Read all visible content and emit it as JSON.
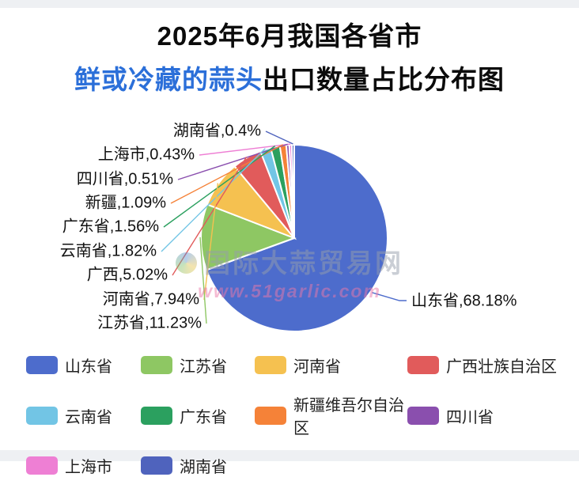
{
  "title": {
    "line1": "2025年6月我国各省市",
    "line2_highlight": "鲜或冷藏的蒜头",
    "line2_rest": "出口数量占比分布图",
    "highlight_color": "#2b6fd9"
  },
  "watermark": {
    "line1": "国际大蒜贸易网",
    "line2": "www.51garlic.com"
  },
  "chart_data": {
    "type": "pie",
    "title": "2025年6月我国各省市鲜或冷藏的蒜头出口数量占比分布图",
    "unit": "%",
    "start_angle": "top",
    "direction": "clockwise",
    "legend_position": "bottom",
    "label_format": "name,value%",
    "slices": [
      {
        "label": "山东省",
        "legend_label": "山东省",
        "value": 68.18,
        "color": "#4d6ccc"
      },
      {
        "label": "江苏省",
        "legend_label": "江苏省",
        "value": 11.23,
        "color": "#8ec763"
      },
      {
        "label": "河南省",
        "legend_label": "河南省",
        "value": 7.94,
        "color": "#f5c150"
      },
      {
        "label": "广西",
        "legend_label": "广西壮族自治区",
        "value": 5.02,
        "color": "#e15b5b"
      },
      {
        "label": "云南省",
        "legend_label": "云南省",
        "value": 1.82,
        "color": "#72c5e5"
      },
      {
        "label": "广东省",
        "legend_label": "广东省",
        "value": 1.56,
        "color": "#2ba05f"
      },
      {
        "label": "新疆",
        "legend_label": "新疆维吾尔自治区",
        "value": 1.09,
        "color": "#f58238"
      },
      {
        "label": "四川省",
        "legend_label": "四川省",
        "value": 0.51,
        "color": "#8a4fae"
      },
      {
        "label": "上海市",
        "legend_label": "上海市",
        "value": 0.43,
        "color": "#ee7fd4"
      },
      {
        "label": "湖南省",
        "legend_label": "湖南省",
        "value": 0.4,
        "color": "#4f63bd"
      }
    ]
  }
}
